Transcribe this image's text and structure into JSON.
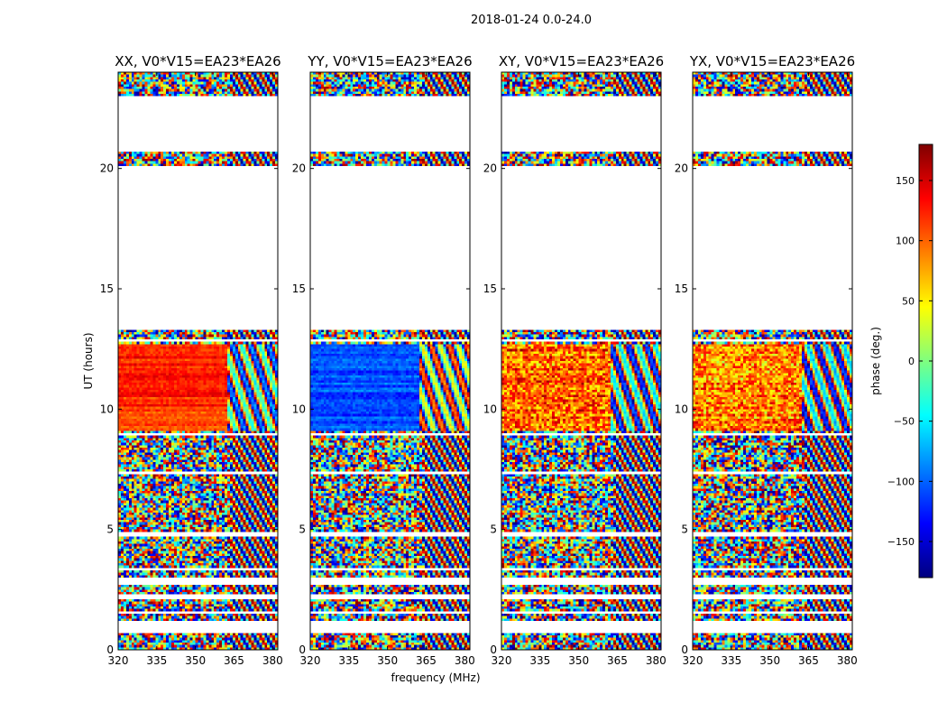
{
  "figure": {
    "suptitle": "2018-01-24 0.0-24.0",
    "xlabel": "frequency (MHz)",
    "ylabel": "UT (hours)"
  },
  "colorbar": {
    "label": "phase (deg.)",
    "vmin": -180,
    "vmax": 180,
    "ticks": [
      -150,
      -100,
      -50,
      0,
      50,
      100,
      150
    ],
    "tick_labels": [
      "−150",
      "−100",
      "−50",
      "0",
      "50",
      "100",
      "150"
    ],
    "colormap": [
      "#00007f",
      "#0000ff",
      "#007fff",
      "#00ffff",
      "#7fff7f",
      "#ffff00",
      "#ff7f00",
      "#ff0000",
      "#7f0000"
    ]
  },
  "chart_data": {
    "type": "heatmap",
    "colormap_name": "jet",
    "xlim": [
      320,
      382
    ],
    "ylim": [
      0,
      24
    ],
    "xticks": [
      320,
      335,
      350,
      365,
      380
    ],
    "yticks": [
      0,
      5,
      10,
      15,
      20
    ],
    "flagged_ut_ranges": [
      [
        0.7,
        1.2
      ],
      [
        1.45,
        1.6
      ],
      [
        2.1,
        2.35
      ],
      [
        2.75,
        3.0
      ],
      [
        3.3,
        3.45
      ],
      [
        4.75,
        4.85
      ],
      [
        6.65,
        6.7
      ],
      [
        7.3,
        7.4
      ],
      [
        8.9,
        9.05
      ],
      [
        12.85,
        12.95
      ],
      [
        13.35,
        20.15
      ],
      [
        20.75,
        23.05
      ]
    ],
    "panels": [
      {
        "title": "XX, V0*V15=EA23*EA26",
        "calibrated_phase_deg": 120
      },
      {
        "title": "YY, V0*V15=EA23*EA26",
        "calibrated_phase_deg": -110
      },
      {
        "title": "XY, V0*V15=EA23*EA26",
        "calibrated_phase_deg": 100
      },
      {
        "title": "YX, V0*V15=EA23*EA26",
        "calibrated_phase_deg": 90
      }
    ]
  }
}
